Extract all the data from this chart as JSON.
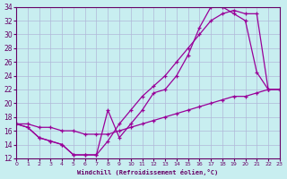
{
  "xlabel": "Windchill (Refroidissement éolien,°C)",
  "bg_color": "#c8eef0",
  "line_color": "#990099",
  "grid_color": "#b0b8d8",
  "xlim": [
    0,
    23
  ],
  "ylim": [
    12,
    34
  ],
  "xticks": [
    0,
    1,
    2,
    3,
    4,
    5,
    6,
    7,
    8,
    9,
    10,
    11,
    12,
    13,
    14,
    15,
    16,
    17,
    18,
    19,
    20,
    21,
    22,
    23
  ],
  "yticks": [
    12,
    14,
    16,
    18,
    20,
    22,
    24,
    26,
    28,
    30,
    32,
    34
  ],
  "line1_x": [
    0,
    1,
    2,
    3,
    4,
    5,
    6,
    7,
    8,
    9,
    10,
    11,
    12,
    13,
    14,
    15,
    16,
    17,
    18,
    19,
    20,
    21,
    22,
    23
  ],
  "line1_y": [
    17,
    16.5,
    15,
    14.5,
    14,
    12.5,
    12.5,
    12.5,
    19,
    15,
    17,
    19,
    21.5,
    22,
    24,
    27,
    31,
    34,
    34,
    33,
    32,
    24.5,
    22,
    22
  ],
  "line2_x": [
    0,
    1,
    2,
    3,
    4,
    5,
    6,
    7,
    8,
    9,
    10,
    11,
    12,
    13,
    14,
    15,
    16,
    17,
    18,
    19,
    20,
    21,
    22,
    23
  ],
  "line2_y": [
    17,
    16.5,
    15,
    14.5,
    14,
    12.5,
    12.5,
    12.5,
    14.5,
    17,
    19,
    21,
    22.5,
    24,
    26,
    28,
    30,
    32,
    33,
    33.5,
    33,
    33,
    22,
    22
  ],
  "line3_x": [
    0,
    1,
    2,
    3,
    4,
    5,
    6,
    7,
    8,
    9,
    10,
    11,
    12,
    13,
    14,
    15,
    16,
    17,
    18,
    19,
    20,
    21,
    22,
    23
  ],
  "line3_y": [
    17,
    17,
    16.5,
    16.5,
    16,
    16,
    15.5,
    15.5,
    15.5,
    16,
    16.5,
    17,
    17.5,
    18,
    18.5,
    19,
    19.5,
    20,
    20.5,
    21,
    21,
    21.5,
    22,
    22
  ]
}
